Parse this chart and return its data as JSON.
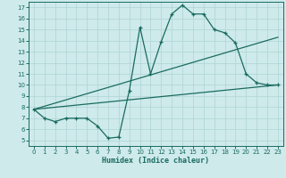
{
  "xlabel": "Humidex (Indice chaleur)",
  "ylabel": "",
  "bg_color": "#ceeaea",
  "line_color": "#1a6b60",
  "grid_color": "#aed4d4",
  "xlim": [
    -0.5,
    23.5
  ],
  "ylim": [
    4.5,
    17.5
  ],
  "xticks": [
    0,
    1,
    2,
    3,
    4,
    5,
    6,
    7,
    8,
    9,
    10,
    11,
    12,
    13,
    14,
    15,
    16,
    17,
    18,
    19,
    20,
    21,
    22,
    23
  ],
  "yticks": [
    5,
    6,
    7,
    8,
    9,
    10,
    11,
    12,
    13,
    14,
    15,
    16,
    17
  ],
  "line1_x": [
    0,
    1,
    2,
    3,
    4,
    5,
    6,
    7,
    8,
    9,
    10,
    11,
    12,
    13,
    14,
    15,
    16,
    17,
    18,
    19,
    20,
    21,
    22,
    23
  ],
  "line1_y": [
    7.8,
    7.0,
    6.7,
    7.0,
    7.0,
    7.0,
    6.3,
    5.2,
    5.3,
    9.5,
    15.2,
    11.0,
    13.9,
    16.4,
    17.2,
    16.4,
    16.4,
    15.0,
    14.7,
    13.8,
    11.0,
    10.2,
    10.0,
    10.0
  ],
  "line2_x": [
    0,
    23
  ],
  "line2_y": [
    7.8,
    14.3
  ],
  "line3_x": [
    0,
    23
  ],
  "line3_y": [
    7.8,
    10.0
  ],
  "tick_fontsize": 5.0,
  "xlabel_fontsize": 6.0
}
